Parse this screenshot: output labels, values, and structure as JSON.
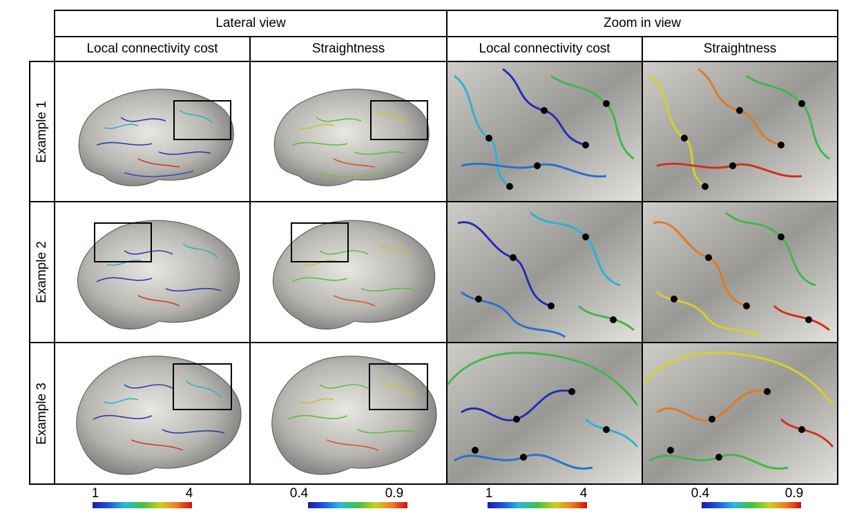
{
  "headers": {
    "lateral": "Lateral view",
    "zoom": "Zoom in view",
    "columns": [
      "Local connectivity cost",
      "Straightness",
      "Local connectivity cost",
      "Straightness"
    ]
  },
  "rows": [
    "Example 1",
    "Example 2",
    "Example 3"
  ],
  "colorbars": [
    {
      "min": "1",
      "max": "4",
      "colormap": "jet"
    },
    {
      "min": "0.4",
      "max": "0.9",
      "colormap": "jet"
    },
    {
      "min": "1",
      "max": "4",
      "colormap": "jet"
    },
    {
      "min": "0.4",
      "max": "0.9",
      "colormap": "jet"
    }
  ],
  "colors": {
    "surface_light": "#e8e6e1",
    "surface_dark": "#6b6b6b",
    "blue": "#1f2fb5",
    "cyan": "#28b3d6",
    "green": "#3fb84a",
    "yellow": "#d9cf2a",
    "red": "#d0301e"
  }
}
